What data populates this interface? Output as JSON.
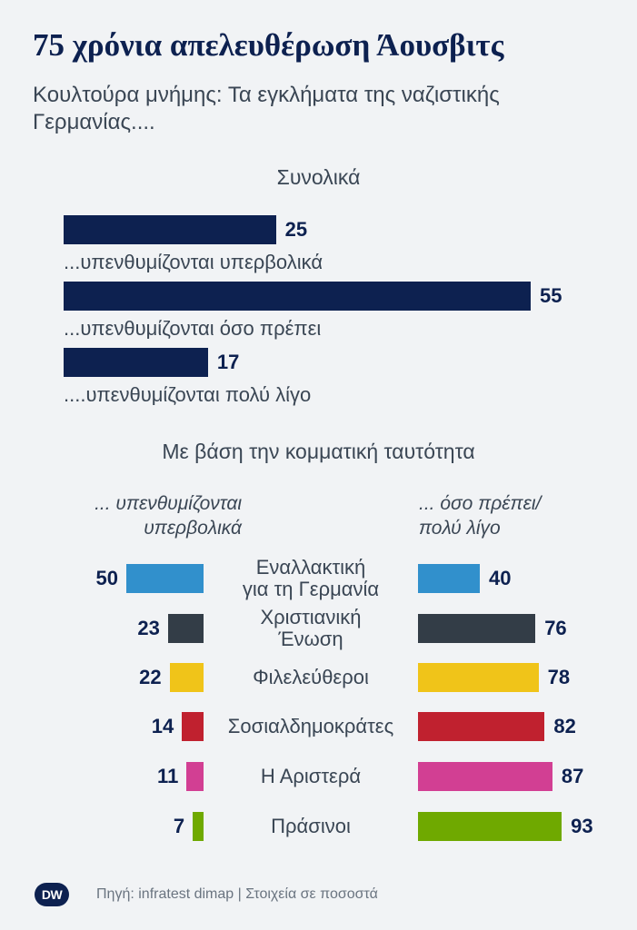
{
  "title": "75 χρόνια απελευθέρωση Άουσβιτς",
  "subtitle": "Κουλτούρα μνήμης: Τα εγκλήματα της ναζιστικής Γερμανίας....",
  "footer": {
    "logo": "DW",
    "source": "Πηγή: infratest dimap | Στοιχεία σε ποσοστά"
  },
  "colors": {
    "total_bar": "#0d2150",
    "text": "#3a4654"
  },
  "chart_data": [
    {
      "type": "bar",
      "title": "Συνολικά",
      "categories": [
        "...υπενθυμίζονται υπερβολικά",
        "...υπενθυμίζονται όσο πρέπει",
        "....υπενθυμίζονται πολύ λίγο"
      ],
      "values": [
        25,
        55,
        17
      ],
      "xlim": [
        0,
        55
      ]
    },
    {
      "type": "bar",
      "title": "Με βάση την κομματική ταυτότητα",
      "left_caption": [
        "... υπενθυμίζονται",
        "υπερβολικά"
      ],
      "right_caption": [
        "... όσο πρέπει/",
        "πολύ λίγο"
      ],
      "categories": [
        [
          "Εναλλακτική",
          "για τη Γερμανία"
        ],
        [
          "Χριστιανική",
          "Ένωση"
        ],
        [
          "Φιλελεύθεροι"
        ],
        [
          "Σοσιαλδημοκράτες"
        ],
        [
          "Η Αριστερά"
        ],
        [
          "Πράσινοι"
        ]
      ],
      "colors": [
        "#3190cc",
        "#333d47",
        "#f0c419",
        "#c0212f",
        "#d23f93",
        "#6fa900"
      ],
      "series": [
        {
          "name": "... υπενθυμίζονται υπερβολικά",
          "values": [
            50,
            23,
            22,
            14,
            11,
            7
          ]
        },
        {
          "name": "... όσο πρέπει/ πολύ λίγο",
          "values": [
            40,
            76,
            78,
            82,
            87,
            93
          ]
        }
      ],
      "xlim": [
        0,
        100
      ]
    }
  ]
}
